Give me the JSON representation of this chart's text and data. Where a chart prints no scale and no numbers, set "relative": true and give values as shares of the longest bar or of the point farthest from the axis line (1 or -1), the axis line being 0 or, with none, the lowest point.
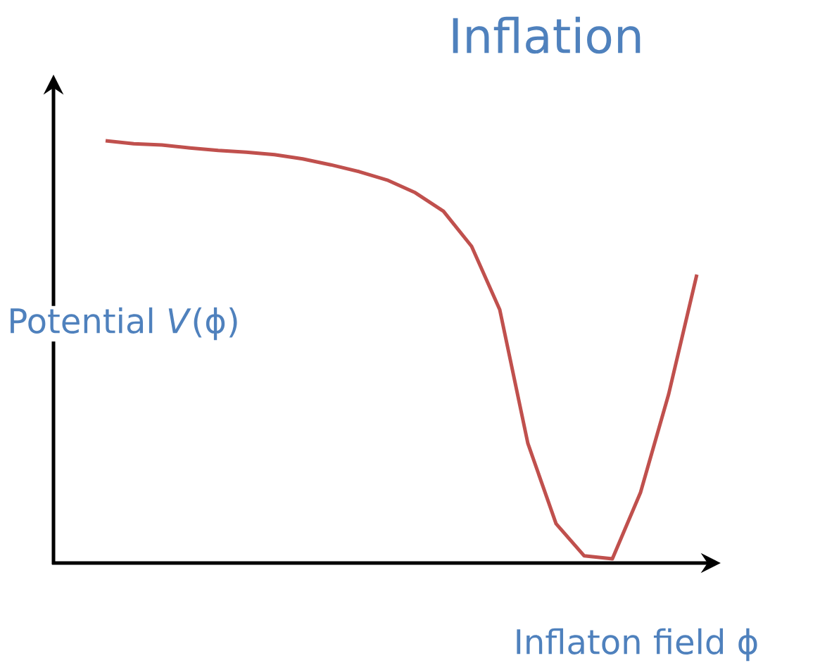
{
  "chart_data": {
    "type": "line",
    "title": "Inflation",
    "xlabel": "Inflaton field ϕ",
    "ylabel": "Potential *V*(ϕ)",
    "relative": true,
    "categories": [
      null,
      null,
      null,
      null,
      null,
      null,
      null,
      null,
      null,
      null,
      null,
      null,
      null,
      null,
      null,
      null,
      null,
      null,
      null,
      null,
      null,
      null
    ],
    "series": [
      {
        "color": "#c0504d",
        "values": [
          1,
          0.993,
          0.99,
          0.983,
          0.977,
          0.973,
          0.967,
          0.957,
          0.943,
          0.927,
          0.907,
          0.877,
          0.833,
          0.75,
          0.6,
          0.283,
          0.093,
          0.017,
          0.01,
          0.167,
          0.4,
          0.683
        ]
      }
    ]
  }
}
